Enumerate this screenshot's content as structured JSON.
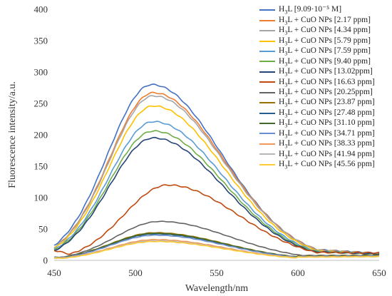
{
  "chart_data": {
    "type": "line",
    "xlabel": "Wavelength/nm",
    "ylabel": "Fluorescence intensity/a.u.",
    "xlim": [
      450,
      650
    ],
    "ylim": [
      0,
      400
    ],
    "x_ticks": [
      "450",
      "500",
      "550",
      "600",
      "650"
    ],
    "y_ticks": [
      "0",
      "50",
      "100",
      "150",
      "200",
      "250",
      "300",
      "350",
      "400"
    ],
    "grid": false,
    "legend_position": "top-right",
    "series": [
      {
        "name": "H3L [9.09·10-5 M]",
        "prefix": "H",
        "sub": "3",
        "suffix": "L [9.09·10⁻⁵ M]",
        "color": "#4472C4",
        "peak": 280,
        "peak_x": 510,
        "start": 10,
        "end": 11
      },
      {
        "name": "H3L + CuO NPs [2.17 ppm]",
        "prefix": "H",
        "sub": "3",
        "suffix": "L + CuO NPs [2.17 ppm]",
        "color": "#ED7D31",
        "peak": 267,
        "peak_x": 511,
        "start": 8,
        "end": 11
      },
      {
        "name": "H3L + CuO NPs [4.34 ppm]",
        "prefix": "H",
        "sub": "3",
        "suffix": "L + CuO NPs [4.34 ppm]",
        "color": "#A5A5A5",
        "peak": 262,
        "peak_x": 511,
        "start": 8,
        "end": 11
      },
      {
        "name": "H3L + CuO NPs [5.79 ppm]",
        "prefix": "H",
        "sub": "3",
        "suffix": "L + CuO NPs [5.79 ppm]",
        "color": "#FFC000",
        "peak": 246,
        "peak_x": 511,
        "start": 8,
        "end": 10
      },
      {
        "name": "H3L + CuO NPs [7.59 ppm]",
        "prefix": "H",
        "sub": "3",
        "suffix": "L + CuO NPs [7.59 ppm]",
        "color": "#5B9BD5",
        "peak": 221,
        "peak_x": 511,
        "start": 8,
        "end": 10
      },
      {
        "name": "H3L + CuO NPs [9.40 ppm]",
        "prefix": "H",
        "sub": "3",
        "suffix": "L + CuO NPs [9.40 ppm]",
        "color": "#70AD47",
        "peak": 206,
        "peak_x": 511,
        "start": 8,
        "end": 10
      },
      {
        "name": "H3L + CuO NPs [13.02ppm]",
        "prefix": "H",
        "sub": "3",
        "suffix": "L + CuO NPs [13.02ppm]",
        "color": "#264478",
        "peak": 195,
        "peak_x": 511,
        "start": 8,
        "end": 10
      },
      {
        "name": "H3L + CuO NPs [16.63 ppm]",
        "prefix": "H",
        "sub": "3",
        "suffix": "L + CuO NPs [16.63 ppm]",
        "color": "#C0490F",
        "peak": 120,
        "peak_x": 520,
        "start": 16,
        "end": 12
      },
      {
        "name": "H3L + CuO NPs [20.25ppm]",
        "prefix": "H",
        "sub": "3",
        "suffix": "L + CuO NPs [20.25ppm]",
        "color": "#636363",
        "peak": 62,
        "peak_x": 515,
        "start": 5,
        "end": 8
      },
      {
        "name": "H3L + CuO NPs [23.87 ppm]",
        "prefix": "H",
        "sub": "3",
        "suffix": "L + CuO NPs [23.87 ppm]",
        "color": "#997300",
        "peak": 44,
        "peak_x": 512,
        "start": 5,
        "end": 8
      },
      {
        "name": "H3L + CuO NPs [27.48 ppm]",
        "prefix": "H",
        "sub": "3",
        "suffix": "L + CuO NPs [27.48 ppm]",
        "color": "#255E91",
        "peak": 42,
        "peak_x": 512,
        "start": 5,
        "end": 7
      },
      {
        "name": "H3L + CuO NPs [31.10 ppm]",
        "prefix": "H",
        "sub": "3",
        "suffix": "L + CuO NPs [31.10 ppm]",
        "color": "#43682B",
        "peak": 43,
        "peak_x": 512,
        "start": 5,
        "end": 7
      },
      {
        "name": "H3L + CuO NPs [34.71 ppm]",
        "prefix": "H",
        "sub": "3",
        "suffix": "L + CuO NPs [34.71 ppm]",
        "color": "#698ED0",
        "peak": 40,
        "peak_x": 512,
        "start": 5,
        "end": 7
      },
      {
        "name": "H3L + CuO NPs [38.33 ppm]",
        "prefix": "H",
        "sub": "3",
        "suffix": "L + CuO NPs [38.33 ppm]",
        "color": "#F1975A",
        "peak": 33,
        "peak_x": 512,
        "start": 4,
        "end": 6
      },
      {
        "name": "H3L + CuO NPs [41.94 ppm]",
        "prefix": "H",
        "sub": "3",
        "suffix": "L + CuO NPs [41.94 ppm]",
        "color": "#B7B7B7",
        "peak": 31,
        "peak_x": 512,
        "start": 4,
        "end": 6
      },
      {
        "name": "H3L + CuO NPs [45.56 ppm]",
        "prefix": "H",
        "sub": "3",
        "suffix": "L + CuO NPs [45.56 ppm]",
        "color": "#FFCD33",
        "peak": 30,
        "peak_x": 512,
        "start": 4,
        "end": 6
      }
    ]
  }
}
